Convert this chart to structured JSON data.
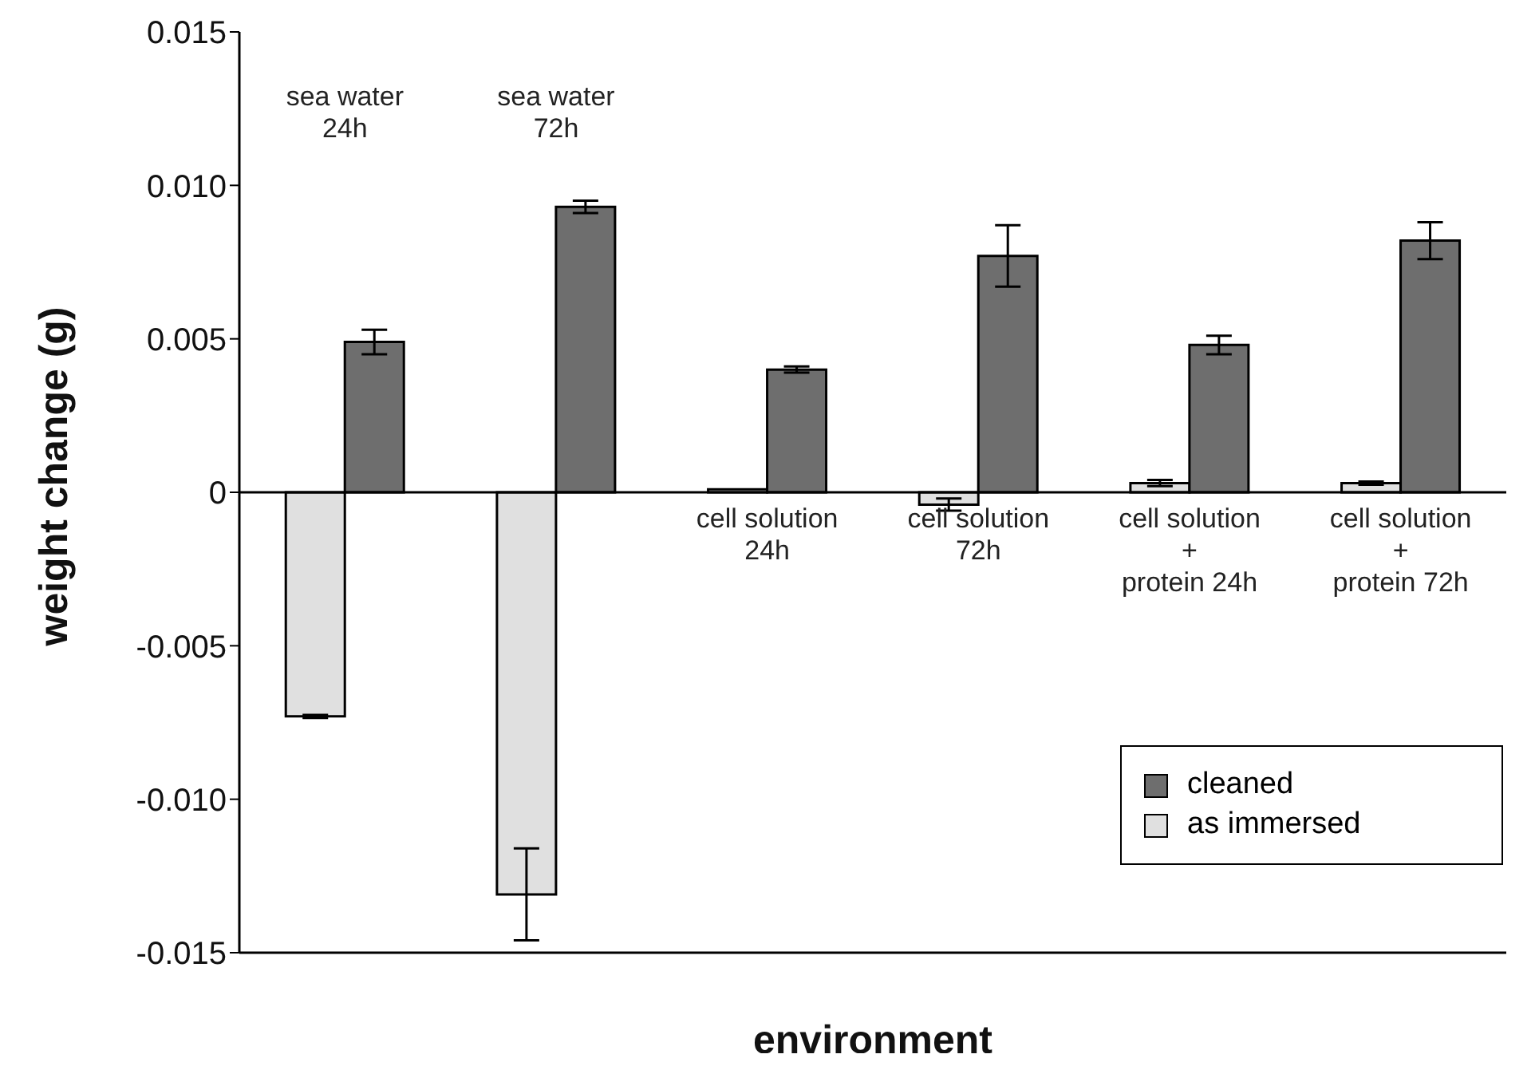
{
  "chart_data": {
    "type": "bar",
    "xlabel": "environment",
    "ylabel": "weight change (g)",
    "categories": [
      "sea water\n24h",
      "sea water\n72h",
      "cell solution\n24h",
      "cell solution\n72h",
      "cell solution\n+\nprotein 24h",
      "cell solution\n+\nprotein 72h"
    ],
    "series": [
      {
        "name": "cleaned",
        "color": "#6e6e6e",
        "values": [
          0.0049,
          0.0093,
          0.004,
          0.0077,
          0.0048,
          0.0082
        ],
        "errors": [
          0.0004,
          0.0002,
          0.0001,
          0.001,
          0.0003,
          0.0006
        ]
      },
      {
        "name": "as immersed",
        "color": "#e0e0e0",
        "values": [
          -0.0073,
          -0.0131,
          0.0001,
          -0.0004,
          0.0003,
          0.0003
        ],
        "errors": [
          5e-05,
          0.0015,
          null,
          0.0002,
          0.0001,
          5e-05
        ]
      }
    ],
    "ylim": [
      -0.015,
      0.015
    ],
    "yticks": [
      {
        "value": -0.015,
        "label": "-0.015"
      },
      {
        "value": -0.01,
        "label": "-0.010"
      },
      -0.005,
      0,
      0.005,
      {
        "value": 0.01,
        "label": "0.010"
      },
      0.015
    ],
    "ref_lines": [
      {
        "axis": "y",
        "value": 0,
        "color": "#000000"
      }
    ],
    "legend": "bottom right"
  }
}
